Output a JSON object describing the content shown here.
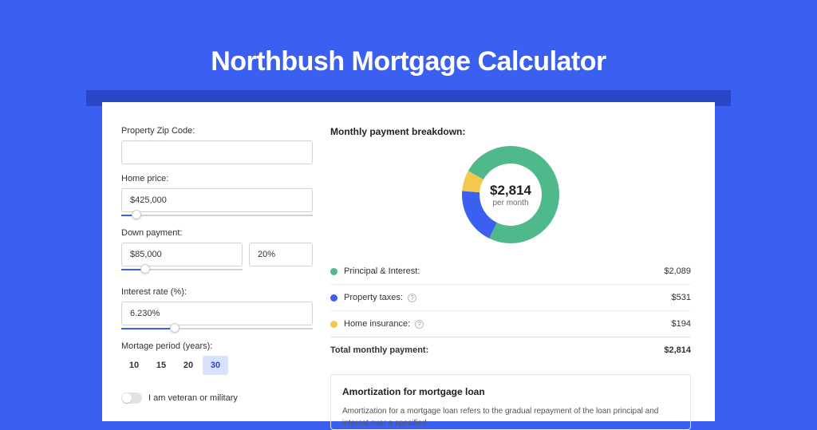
{
  "page": {
    "title": "Northbush Mortgage Calculator"
  },
  "form": {
    "zip": {
      "label": "Property Zip Code:",
      "value": ""
    },
    "price": {
      "label": "Home price:",
      "value": "$425,000",
      "slider_pct": 8
    },
    "down": {
      "label": "Down payment:",
      "value": "$85,000",
      "pct": "20%",
      "slider_pct": 20
    },
    "rate": {
      "label": "Interest rate (%):",
      "value": "6.230%",
      "slider_pct": 28
    },
    "period": {
      "label": "Mortage period (years):",
      "options": [
        "10",
        "15",
        "20",
        "30"
      ],
      "selected": "30"
    },
    "veteran_label": "I am veteran or military"
  },
  "breakdown": {
    "title": "Monthly payment breakdown:",
    "center_value": "$2,814",
    "center_sub": "per month",
    "items": [
      {
        "label": "Principal & Interest:",
        "value": "$2,089",
        "color": "#4fb98c",
        "frac": 0.742,
        "info": false
      },
      {
        "label": "Property taxes:",
        "value": "$531",
        "color": "#3b5ff0",
        "frac": 0.189,
        "info": true
      },
      {
        "label": "Home insurance:",
        "value": "$194",
        "color": "#f2c94c",
        "frac": 0.069,
        "info": true
      }
    ],
    "total_label": "Total monthly payment:",
    "total_value": "$2,814",
    "donut": {
      "radius": 50,
      "stroke": 22,
      "bg": "#ffffff"
    }
  },
  "amort": {
    "title": "Amortization for mortgage loan",
    "text": "Amortization for a mortgage loan refers to the gradual repayment of the loan principal and interest over a specified"
  }
}
